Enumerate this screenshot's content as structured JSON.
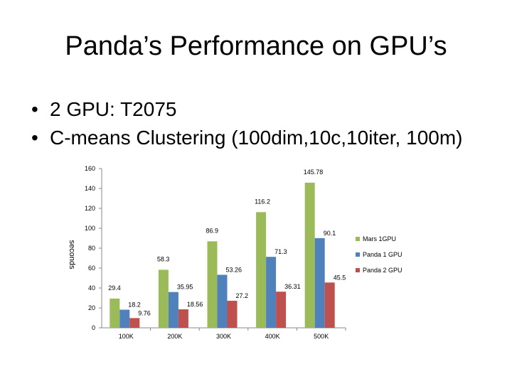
{
  "slide": {
    "title": "Panda’s Performance on GPU’s",
    "bullets": [
      "2 GPU: T2075",
      "C-means Clustering (100dim,10c,10iter, 100m)"
    ],
    "bullet_glyph": "•"
  },
  "chart_data": {
    "type": "bar",
    "categories": [
      "100K",
      "200K",
      "300K",
      "400K",
      "500K"
    ],
    "series": [
      {
        "name": "Mars 1GPU",
        "color": "#9bbb59",
        "values": [
          29.4,
          58.3,
          86.9,
          116.2,
          145.78
        ]
      },
      {
        "name": "Panda 1 GPU",
        "color": "#4f81bd",
        "values": [
          18.2,
          35.95,
          53.26,
          71.3,
          90.1
        ]
      },
      {
        "name": "Panda 2 GPU",
        "color": "#c0504d",
        "values": [
          9.76,
          18.56,
          27.2,
          36.31,
          45.5
        ]
      }
    ],
    "value_labels": [
      [
        "29.4",
        "58.3",
        "86.9",
        "116.2",
        "145.78"
      ],
      [
        "18.2",
        "35.95",
        "53.26",
        "71.3",
        "90.1"
      ],
      [
        "9.76",
        "18.56",
        "27.2",
        "36.31",
        "45.5"
      ]
    ],
    "yticks": [
      "0",
      "20",
      "40",
      "60",
      "80",
      "100",
      "120",
      "140",
      "160"
    ],
    "ylabel": "seconds",
    "xlabel": "",
    "ylim": [
      0,
      160
    ],
    "legend": "right",
    "grid": false
  }
}
